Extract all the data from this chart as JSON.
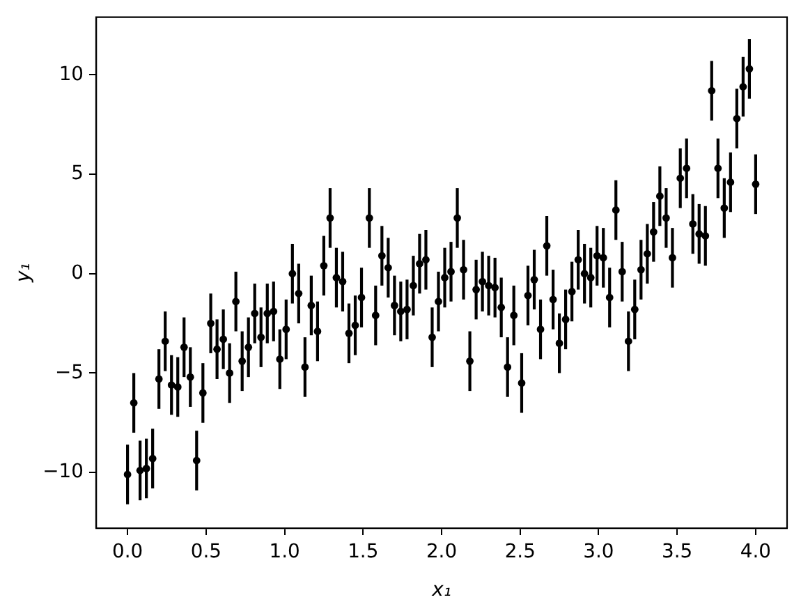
{
  "chart_data": {
    "type": "scatter",
    "xlabel": "x₁",
    "ylabel": "y₁",
    "x": [
      0,
      0.04,
      0.08,
      0.12,
      0.16,
      0.2,
      0.24,
      0.28,
      0.32,
      0.36,
      0.4,
      0.44,
      0.48,
      0.53,
      0.57,
      0.61,
      0.65,
      0.69,
      0.73,
      0.77,
      0.81,
      0.85,
      0.89,
      0.93,
      0.97,
      1.01,
      1.05,
      1.09,
      1.13,
      1.17,
      1.21,
      1.25,
      1.29,
      1.33,
      1.37,
      1.41,
      1.45,
      1.49,
      1.54,
      1.58,
      1.62,
      1.66,
      1.7,
      1.74,
      1.78,
      1.82,
      1.86,
      1.9,
      1.94,
      1.98,
      2.02,
      2.06,
      2.1,
      2.14,
      2.18,
      2.22,
      2.26,
      2.3,
      2.34,
      2.38,
      2.42,
      2.46,
      2.51,
      2.55,
      2.59,
      2.63,
      2.67,
      2.71,
      2.75,
      2.79,
      2.83,
      2.87,
      2.91,
      2.95,
      2.99,
      3.03,
      3.07,
      3.11,
      3.15,
      3.19,
      3.23,
      3.27,
      3.31,
      3.35,
      3.39,
      3.43,
      3.47,
      3.52,
      3.56,
      3.6,
      3.64,
      3.68,
      3.72,
      3.76,
      3.8,
      3.84,
      3.88,
      3.92,
      3.96,
      4
    ],
    "values": [
      -10.1,
      -6.5,
      -9.9,
      -9.8,
      -9.3,
      -5.3,
      -3.4,
      -5.6,
      -5.7,
      -3.7,
      -5.2,
      -9.4,
      -6.0,
      -2.5,
      -3.8,
      -3.3,
      -5.0,
      -1.4,
      -4.4,
      -3.7,
      -2.0,
      -3.2,
      -2.0,
      -1.9,
      -4.3,
      -2.8,
      0.0,
      -1.0,
      -4.7,
      -1.6,
      -2.9,
      0.4,
      2.8,
      -0.2,
      -0.4,
      -3.0,
      -2.6,
      -1.2,
      2.8,
      -2.1,
      0.9,
      0.3,
      -1.6,
      -1.9,
      -1.8,
      -0.6,
      0.5,
      0.7,
      -3.2,
      -1.4,
      -0.2,
      0.1,
      2.8,
      0.2,
      -4.4,
      -0.8,
      -0.4,
      -0.6,
      -0.7,
      -1.7,
      -4.7,
      -2.1,
      -5.5,
      -1.1,
      -0.3,
      -2.8,
      1.4,
      -1.3,
      -3.5,
      -2.3,
      -0.9,
      0.7,
      0.0,
      -0.2,
      0.9,
      0.8,
      -1.2,
      3.2,
      0.1,
      -3.4,
      -1.8,
      0.2,
      1.0,
      2.1,
      3.9,
      2.8,
      0.8,
      4.8,
      5.3,
      2.5,
      2.0,
      1.9,
      9.2,
      5.3,
      3.3,
      4.6,
      7.8,
      9.4,
      10.3,
      4.5
    ],
    "errors": [
      1.5,
      1.5,
      1.5,
      1.5,
      1.5,
      1.5,
      1.5,
      1.5,
      1.5,
      1.5,
      1.5,
      1.5,
      1.5,
      1.5,
      1.5,
      1.5,
      1.5,
      1.5,
      1.5,
      1.5,
      1.5,
      1.5,
      1.5,
      1.5,
      1.5,
      1.5,
      1.5,
      1.5,
      1.5,
      1.5,
      1.5,
      1.5,
      1.5,
      1.5,
      1.5,
      1.5,
      1.5,
      1.5,
      1.5,
      1.5,
      1.5,
      1.5,
      1.5,
      1.5,
      1.5,
      1.5,
      1.5,
      1.5,
      1.5,
      1.5,
      1.5,
      1.5,
      1.5,
      1.5,
      1.5,
      1.5,
      1.5,
      1.5,
      1.5,
      1.5,
      1.5,
      1.5,
      1.5,
      1.5,
      1.5,
      1.5,
      1.5,
      1.5,
      1.5,
      1.5,
      1.5,
      1.5,
      1.5,
      1.5,
      1.5,
      1.5,
      1.5,
      1.5,
      1.5,
      1.5,
      1.5,
      1.5,
      1.5,
      1.5,
      1.5,
      1.5,
      1.5,
      1.5,
      1.5,
      1.5,
      1.5,
      1.5,
      1.5,
      1.5,
      1.5,
      1.5,
      1.5,
      1.5,
      1.5,
      1.5
    ],
    "color": "#000000",
    "marker": "circle",
    "xlim": [
      -0.2,
      4.2
    ],
    "ylim": [
      -12.8,
      12.9
    ],
    "xticks": [
      {
        "value": 0,
        "label": "0.0"
      },
      {
        "value": 0.5,
        "label": "0.5"
      },
      {
        "value": 1,
        "label": "1.0"
      },
      {
        "value": 1.5,
        "label": "1.5"
      },
      {
        "value": 2,
        "label": "2.0"
      },
      {
        "value": 2.5,
        "label": "2.5"
      },
      {
        "value": 3,
        "label": "3.0"
      },
      {
        "value": 3.5,
        "label": "3.5"
      },
      {
        "value": 4,
        "label": "4.0"
      }
    ],
    "yticks": [
      {
        "value": -10,
        "label": "−10"
      },
      {
        "value": -5,
        "label": "−5"
      },
      0,
      5,
      10
    ],
    "grid": false
  }
}
